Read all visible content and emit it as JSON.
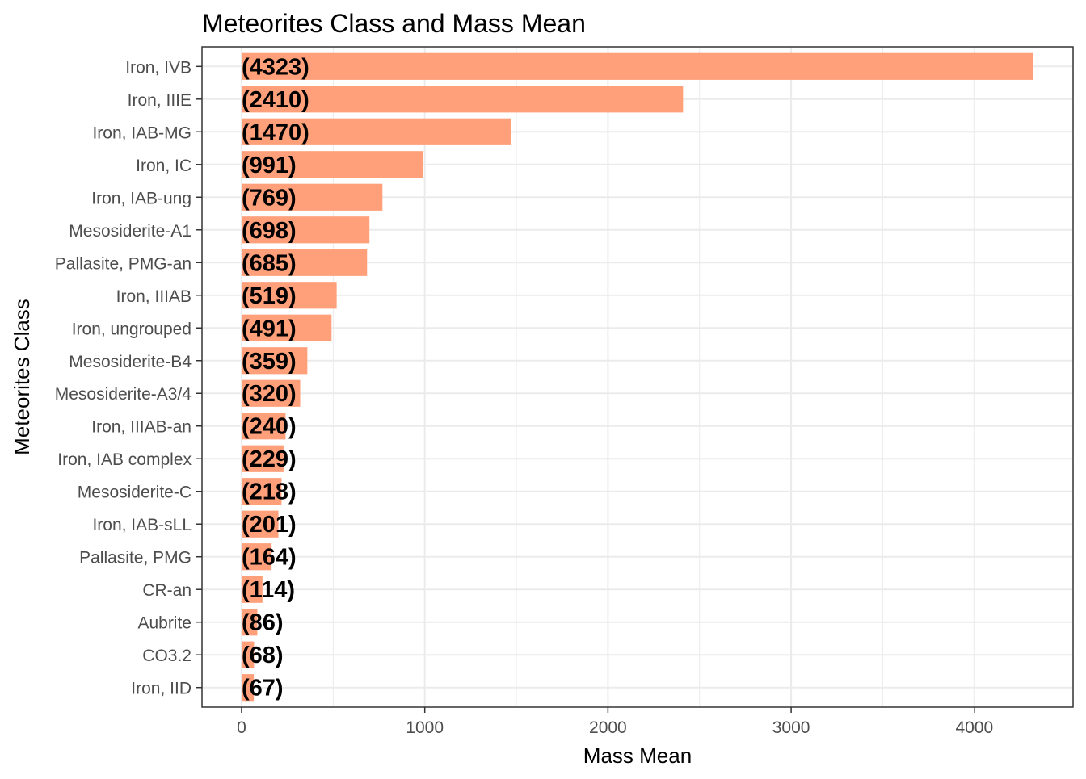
{
  "chart_data": {
    "type": "bar",
    "orientation": "horizontal",
    "title": "Meteorites Class and Mass Mean",
    "xlabel": "Mass Mean",
    "ylabel": "Meteorites Class",
    "categories": [
      "Iron, IVB",
      "Iron, IIIE",
      "Iron, IAB-MG",
      "Iron, IC",
      "Iron, IAB-ung",
      "Mesosiderite-A1",
      "Pallasite, PMG-an",
      "Iron, IIIAB",
      "Iron, ungrouped",
      "Mesosiderite-B4",
      "Mesosiderite-A3/4",
      "Iron, IIIAB-an",
      "Iron, IAB complex",
      "Mesosiderite-C",
      "Iron, IAB-sLL",
      "Pallasite, PMG",
      "CR-an",
      "Aubrite",
      "CO3.2",
      "Iron, IID"
    ],
    "values": [
      4323,
      2410,
      1470,
      991,
      769,
      698,
      685,
      519,
      491,
      359,
      320,
      240,
      229,
      218,
      201,
      164,
      114,
      86,
      68,
      67
    ],
    "data_labels": [
      "(4323)",
      "(2410)",
      "(1470)",
      "(991)",
      "(769)",
      "(698)",
      "(685)",
      "(519)",
      "(491)",
      "(359)",
      "(320)",
      "(240)",
      "(229)",
      "(218)",
      "(201)",
      "(164)",
      "(114)",
      "(86)",
      "(68)",
      "(67)"
    ],
    "xlim": [
      -216,
      4539
    ],
    "xticks": [
      0,
      1000,
      2000,
      3000,
      4000
    ],
    "xtick_labels": [
      "0",
      "1000",
      "2000",
      "3000",
      "4000"
    ],
    "grid": true,
    "bar_color": "#FFA07A",
    "label_color": "#000000",
    "grid_color": "#EBEBEB",
    "panel_border_color": "#333333"
  }
}
